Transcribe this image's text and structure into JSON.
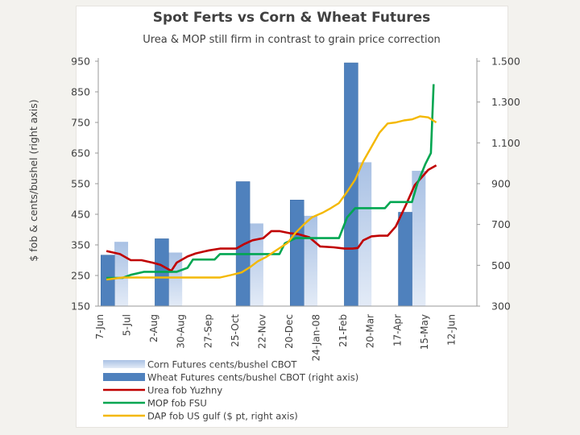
{
  "chart_data": {
    "type": "bar",
    "title": "Spot Ferts vs Corn & Wheat Futures",
    "subtitle": "Urea & MOP still firm in contrast to grain price correction",
    "ylabel": "$ fob & cents/bushel (right axis)",
    "ylim": [
      150,
      950
    ],
    "y2lim": [
      300,
      1500
    ],
    "ytick_labels": [
      "150",
      "250",
      "350",
      "450",
      "550",
      "650",
      "750",
      "850",
      "950"
    ],
    "y2tick_labels": [
      "300",
      "500",
      "700",
      "900",
      "1.100",
      "1.300",
      "1.500"
    ],
    "categories": [
      "7-Jun",
      "5-Jul",
      "2-Aug",
      "30-Aug",
      "27-Sep",
      "25-Oct",
      "22-Nov",
      "20-Dec",
      "24-Jan-08",
      "21-Feb",
      "20-Mar",
      "17-Apr",
      "15-May",
      "12-Jun"
    ],
    "grid": false,
    "legend": "bottom",
    "series": [
      {
        "name": "Corn Futures cents/bushel CBOT",
        "kind": "bar",
        "axis": "left",
        "color": "#b9cdea",
        "x": [
          0.35,
          2.35,
          5.35,
          7.35,
          9.35,
          11.35
        ],
        "values": [
          360,
          325,
          420,
          445,
          620,
          592
        ]
      },
      {
        "name": "Wheat Futures cents/bushel CBOT (right axis)",
        "kind": "bar",
        "axis": "right",
        "color": "#4f81bd",
        "x": [
          -0.15,
          1.85,
          4.85,
          6.85,
          8.85,
          10.85
        ],
        "values": [
          550,
          630,
          910,
          820,
          1492,
          760
        ]
      },
      {
        "name": "Urea fob Yuzhny",
        "kind": "line",
        "axis": "left",
        "color": "#c00000",
        "x": [
          -0.2,
          0.3,
          0.7,
          1.1,
          1.5,
          1.8,
          2.2,
          2.4,
          2.8,
          3.1,
          3.6,
          4.0,
          4.6,
          4.9,
          5.2,
          5.6,
          5.9,
          6.2,
          6.6,
          6.9,
          7.3,
          7.7,
          8.2,
          8.6,
          8.9,
          9.1,
          9.3,
          9.6,
          9.9,
          10.2,
          10.5,
          10.9,
          11.2,
          11.5,
          11.7,
          12.0
        ],
        "values": [
          330,
          320,
          300,
          300,
          292,
          285,
          265,
          292,
          312,
          322,
          332,
          338,
          338,
          353,
          365,
          372,
          395,
          395,
          388,
          385,
          375,
          345,
          342,
          338,
          338,
          340,
          365,
          378,
          380,
          380,
          410,
          485,
          545,
          575,
          595,
          610
        ]
      },
      {
        "name": "MOP fob FSU",
        "kind": "line",
        "axis": "left",
        "color": "#00a651",
        "x": [
          -0.2,
          0.4,
          0.7,
          1.2,
          1.8,
          2.4,
          2.8,
          3.0,
          3.4,
          3.8,
          4.0,
          4.3,
          4.7,
          5.2,
          5.7,
          6.2,
          6.4,
          6.8,
          7.2,
          7.6,
          8.0,
          8.4,
          8.7,
          9.0,
          9.6,
          10.1,
          10.3,
          10.7,
          11.1,
          11.3,
          11.6,
          11.8,
          11.9
        ],
        "values": [
          242,
          242,
          252,
          262,
          262,
          262,
          275,
          302,
          302,
          302,
          320,
          320,
          320,
          320,
          320,
          320,
          355,
          372,
          372,
          372,
          372,
          372,
          440,
          470,
          470,
          470,
          490,
          490,
          490,
          550,
          615,
          650,
          875
        ]
      },
      {
        "name": "DAP fob US gulf ($ pt, right axis)",
        "kind": "line",
        "axis": "right",
        "color": "#f4b800",
        "x": [
          -0.2,
          0.4,
          1.0,
          1.6,
          2.2,
          2.8,
          3.4,
          4.0,
          4.4,
          4.8,
          5.1,
          5.4,
          5.7,
          6.1,
          6.5,
          6.8,
          7.1,
          7.4,
          7.8,
          8.1,
          8.4,
          8.7,
          9.0,
          9.3,
          9.6,
          9.9,
          10.2,
          10.5,
          10.8,
          11.1,
          11.4,
          11.7,
          12.0
        ],
        "values": [
          430,
          440,
          440,
          440,
          440,
          440,
          440,
          440,
          452,
          465,
          490,
          520,
          540,
          575,
          610,
          660,
          700,
          735,
          758,
          780,
          805,
          860,
          920,
          1010,
          1080,
          1150,
          1195,
          1200,
          1210,
          1215,
          1230,
          1225,
          1200
        ]
      }
    ]
  }
}
